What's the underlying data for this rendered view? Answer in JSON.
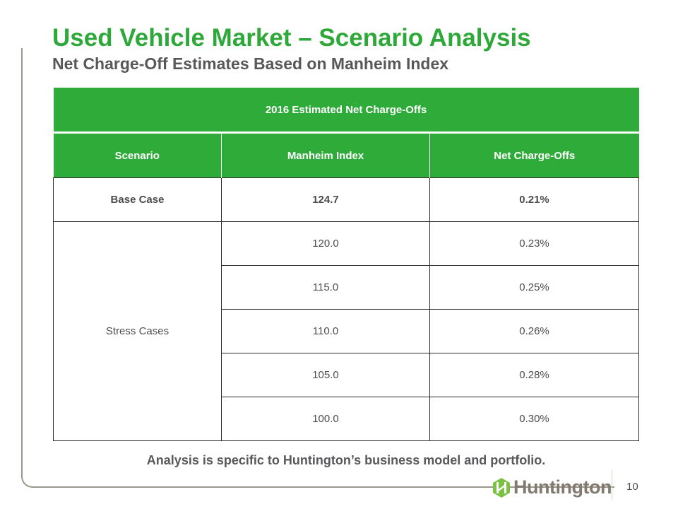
{
  "header": {
    "title": "Used Vehicle Market – Scenario Analysis",
    "subtitle": "Net Charge-Off Estimates Based on Manheim Index"
  },
  "table": {
    "caption": "2016 Estimated Net Charge-Offs",
    "columns": [
      "Scenario",
      "Manheim Index",
      "Net Charge-Offs"
    ],
    "base_case": {
      "scenario": "Base Case",
      "manheim_index": "124.7",
      "net_charge_offs": "0.21%"
    },
    "stress_label": "Stress Cases",
    "stress_rows": [
      {
        "manheim_index": "120.0",
        "net_charge_offs": "0.23%"
      },
      {
        "manheim_index": "115.0",
        "net_charge_offs": "0.25%"
      },
      {
        "manheim_index": "110.0",
        "net_charge_offs": "0.26%"
      },
      {
        "manheim_index": "105.0",
        "net_charge_offs": "0.28%"
      },
      {
        "manheim_index": "100.0",
        "net_charge_offs": "0.30%"
      }
    ]
  },
  "footnote": "Analysis is specific to Huntington’s business model and portfolio.",
  "footer": {
    "logo_text": "Huntington",
    "logo_icon": "huntington-hexagon-logo",
    "page_number": "10"
  },
  "colors": {
    "brand_green": "#2fab3a",
    "title_green": "#2fa83a",
    "text_gray": "#58585a",
    "logo_gray": "#827a70",
    "logo_green": "#7ac143"
  }
}
